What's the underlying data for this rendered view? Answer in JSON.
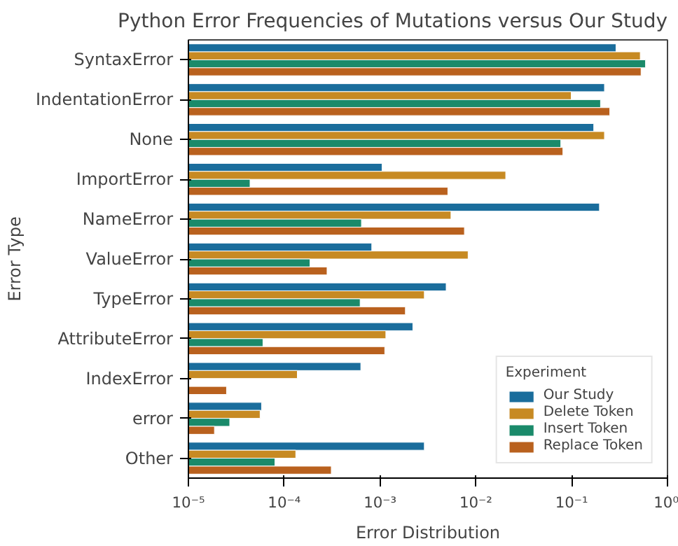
{
  "chart_data": {
    "type": "bar",
    "orientation": "horizontal",
    "title": "Python Error Frequencies of Mutations versus Our Study",
    "xlabel": "Error Distribution",
    "ylabel": "Error Type",
    "legend_title": "Experiment",
    "legend": "bottom right",
    "grid": false,
    "log": "x",
    "categories": [
      "SyntaxError",
      "IndentationError",
      "None",
      "ImportError",
      "NameError",
      "ValueError",
      "TypeError",
      "AttributeError",
      "IndexError",
      "error",
      "Other"
    ],
    "xlim": [
      1e-05,
      1
    ],
    "xticks": [
      {
        "value": 1e-05,
        "label": "10⁻⁵"
      },
      {
        "value": 0.0001,
        "label": "10⁻⁴"
      },
      {
        "value": 0.001,
        "label": "10⁻³"
      },
      {
        "value": 0.01,
        "label": "10⁻²"
      },
      {
        "value": 0.1,
        "label": "10⁻¹"
      },
      {
        "value": 1,
        "label": "10⁰"
      }
    ],
    "series": [
      {
        "name": "Our Study",
        "color": "#1a6d9c",
        "values": [
          0.29,
          0.22,
          0.17,
          0.00105,
          0.195,
          0.00082,
          0.0049,
          0.0022,
          0.00063,
          5.8e-05,
          0.0029
        ]
      },
      {
        "name": "Delete Token",
        "color": "#c78a23",
        "values": [
          0.52,
          0.099,
          0.22,
          0.0205,
          0.0055,
          0.0083,
          0.0029,
          0.00115,
          0.000137,
          5.6e-05,
          0.000132
        ]
      },
      {
        "name": "Insert Token",
        "color": "#1a8a6a",
        "values": [
          0.59,
          0.2,
          0.077,
          4.4e-05,
          0.00064,
          0.000186,
          0.00062,
          6e-05,
          null,
          2.7e-05,
          8e-05
        ]
      },
      {
        "name": "Replace Token",
        "color": "#b9611e",
        "values": [
          0.53,
          0.25,
          0.081,
          0.0051,
          0.0076,
          0.00028,
          0.00184,
          0.00112,
          2.5e-05,
          1.87e-05,
          0.00031
        ]
      }
    ]
  }
}
